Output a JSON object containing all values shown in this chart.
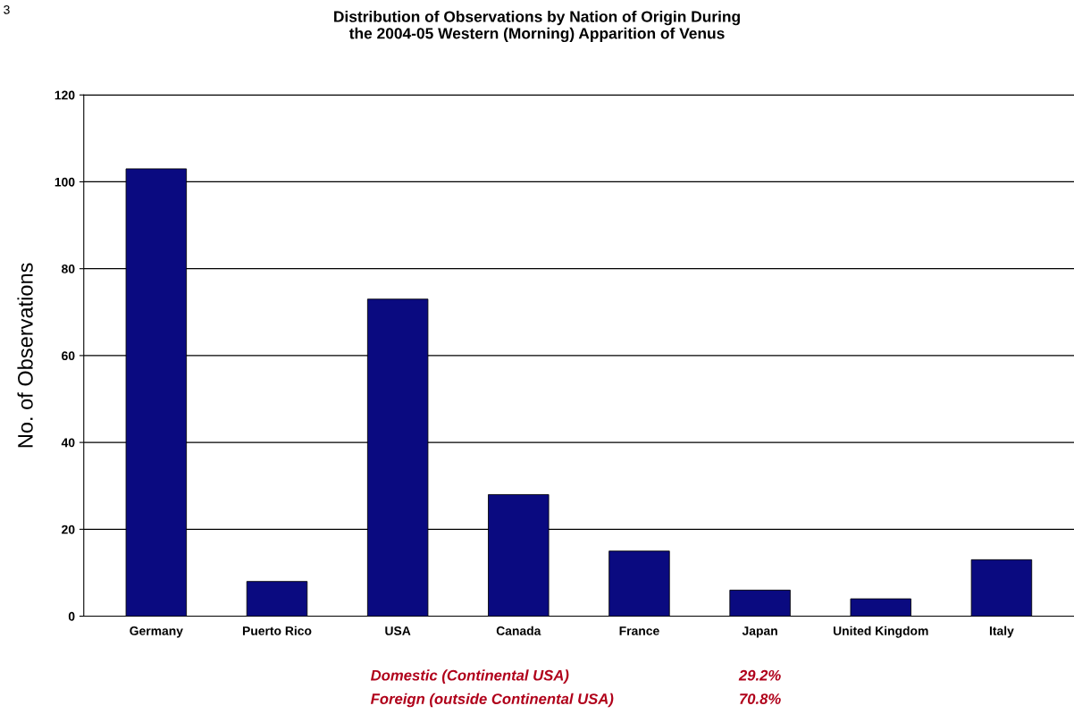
{
  "chart_data": {
    "type": "bar",
    "title": "Distribution of Observations by Nation of Origin During\nthe 2004-05 Western (Morning) Apparition of Venus",
    "ylabel": "No. of Observations",
    "categories": [
      "Germany",
      "Puerto Rico",
      "USA",
      "Canada",
      "France",
      "Japan",
      "United Kingdom",
      "Italy"
    ],
    "values": [
      103,
      8,
      73,
      28,
      15,
      6,
      4,
      13
    ],
    "color": "#0a0a80",
    "ylim": [
      0,
      120
    ],
    "yticks": [
      0,
      20,
      40,
      60,
      80,
      100,
      120
    ],
    "grid": "y",
    "annotations": [
      "3",
      "Domestic (Continental USA)",
      "29.2%",
      "Foreign (outside Continental USA)",
      "70.8%"
    ]
  }
}
